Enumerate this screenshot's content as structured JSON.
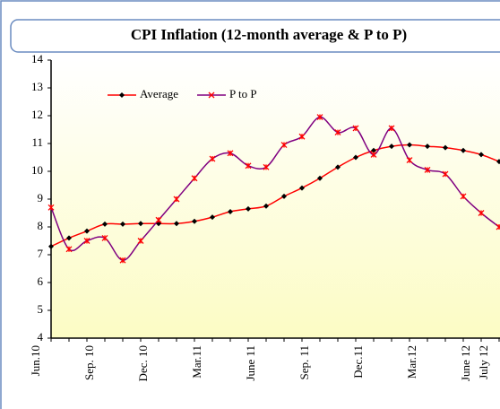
{
  "chart_data": {
    "type": "line",
    "title": "CPI Inflation (12-month average & P to P)",
    "categories": [
      "Jun.10",
      null,
      null,
      "Sep. 10",
      null,
      null,
      "Dec. 10",
      null,
      null,
      "Mar.11",
      null,
      null,
      "June 11",
      null,
      null,
      "Sep. 11",
      null,
      null,
      "Dec.11",
      null,
      null,
      "Mar.12",
      null,
      null,
      "June 12",
      "July 12"
    ],
    "series": [
      {
        "name": "Average",
        "color": "#ff0000",
        "marker_color": "#000000",
        "values": [
          7.3,
          7.6,
          7.85,
          8.1,
          8.1,
          8.12,
          8.12,
          8.12,
          8.2,
          8.35,
          8.55,
          8.65,
          8.75,
          9.1,
          9.4,
          9.75,
          10.15,
          10.5,
          10.75,
          10.9,
          10.95,
          10.9,
          10.85,
          10.75,
          10.6,
          10.35
        ]
      },
      {
        "name": "P to P",
        "color": "#800080",
        "marker_color": "#ff0000",
        "values": [
          8.7,
          7.2,
          7.5,
          7.6,
          6.8,
          7.5,
          8.25,
          9.0,
          9.75,
          10.45,
          10.65,
          10.2,
          10.15,
          10.95,
          11.25,
          11.95,
          11.4,
          11.55,
          10.6,
          11.55,
          10.4,
          10.05,
          9.9,
          9.1,
          8.5,
          8.0
        ]
      }
    ],
    "ylim": [
      4,
      14
    ],
    "yticks": [
      4,
      5,
      6,
      7,
      8,
      9,
      10,
      11,
      12,
      13,
      14
    ]
  }
}
